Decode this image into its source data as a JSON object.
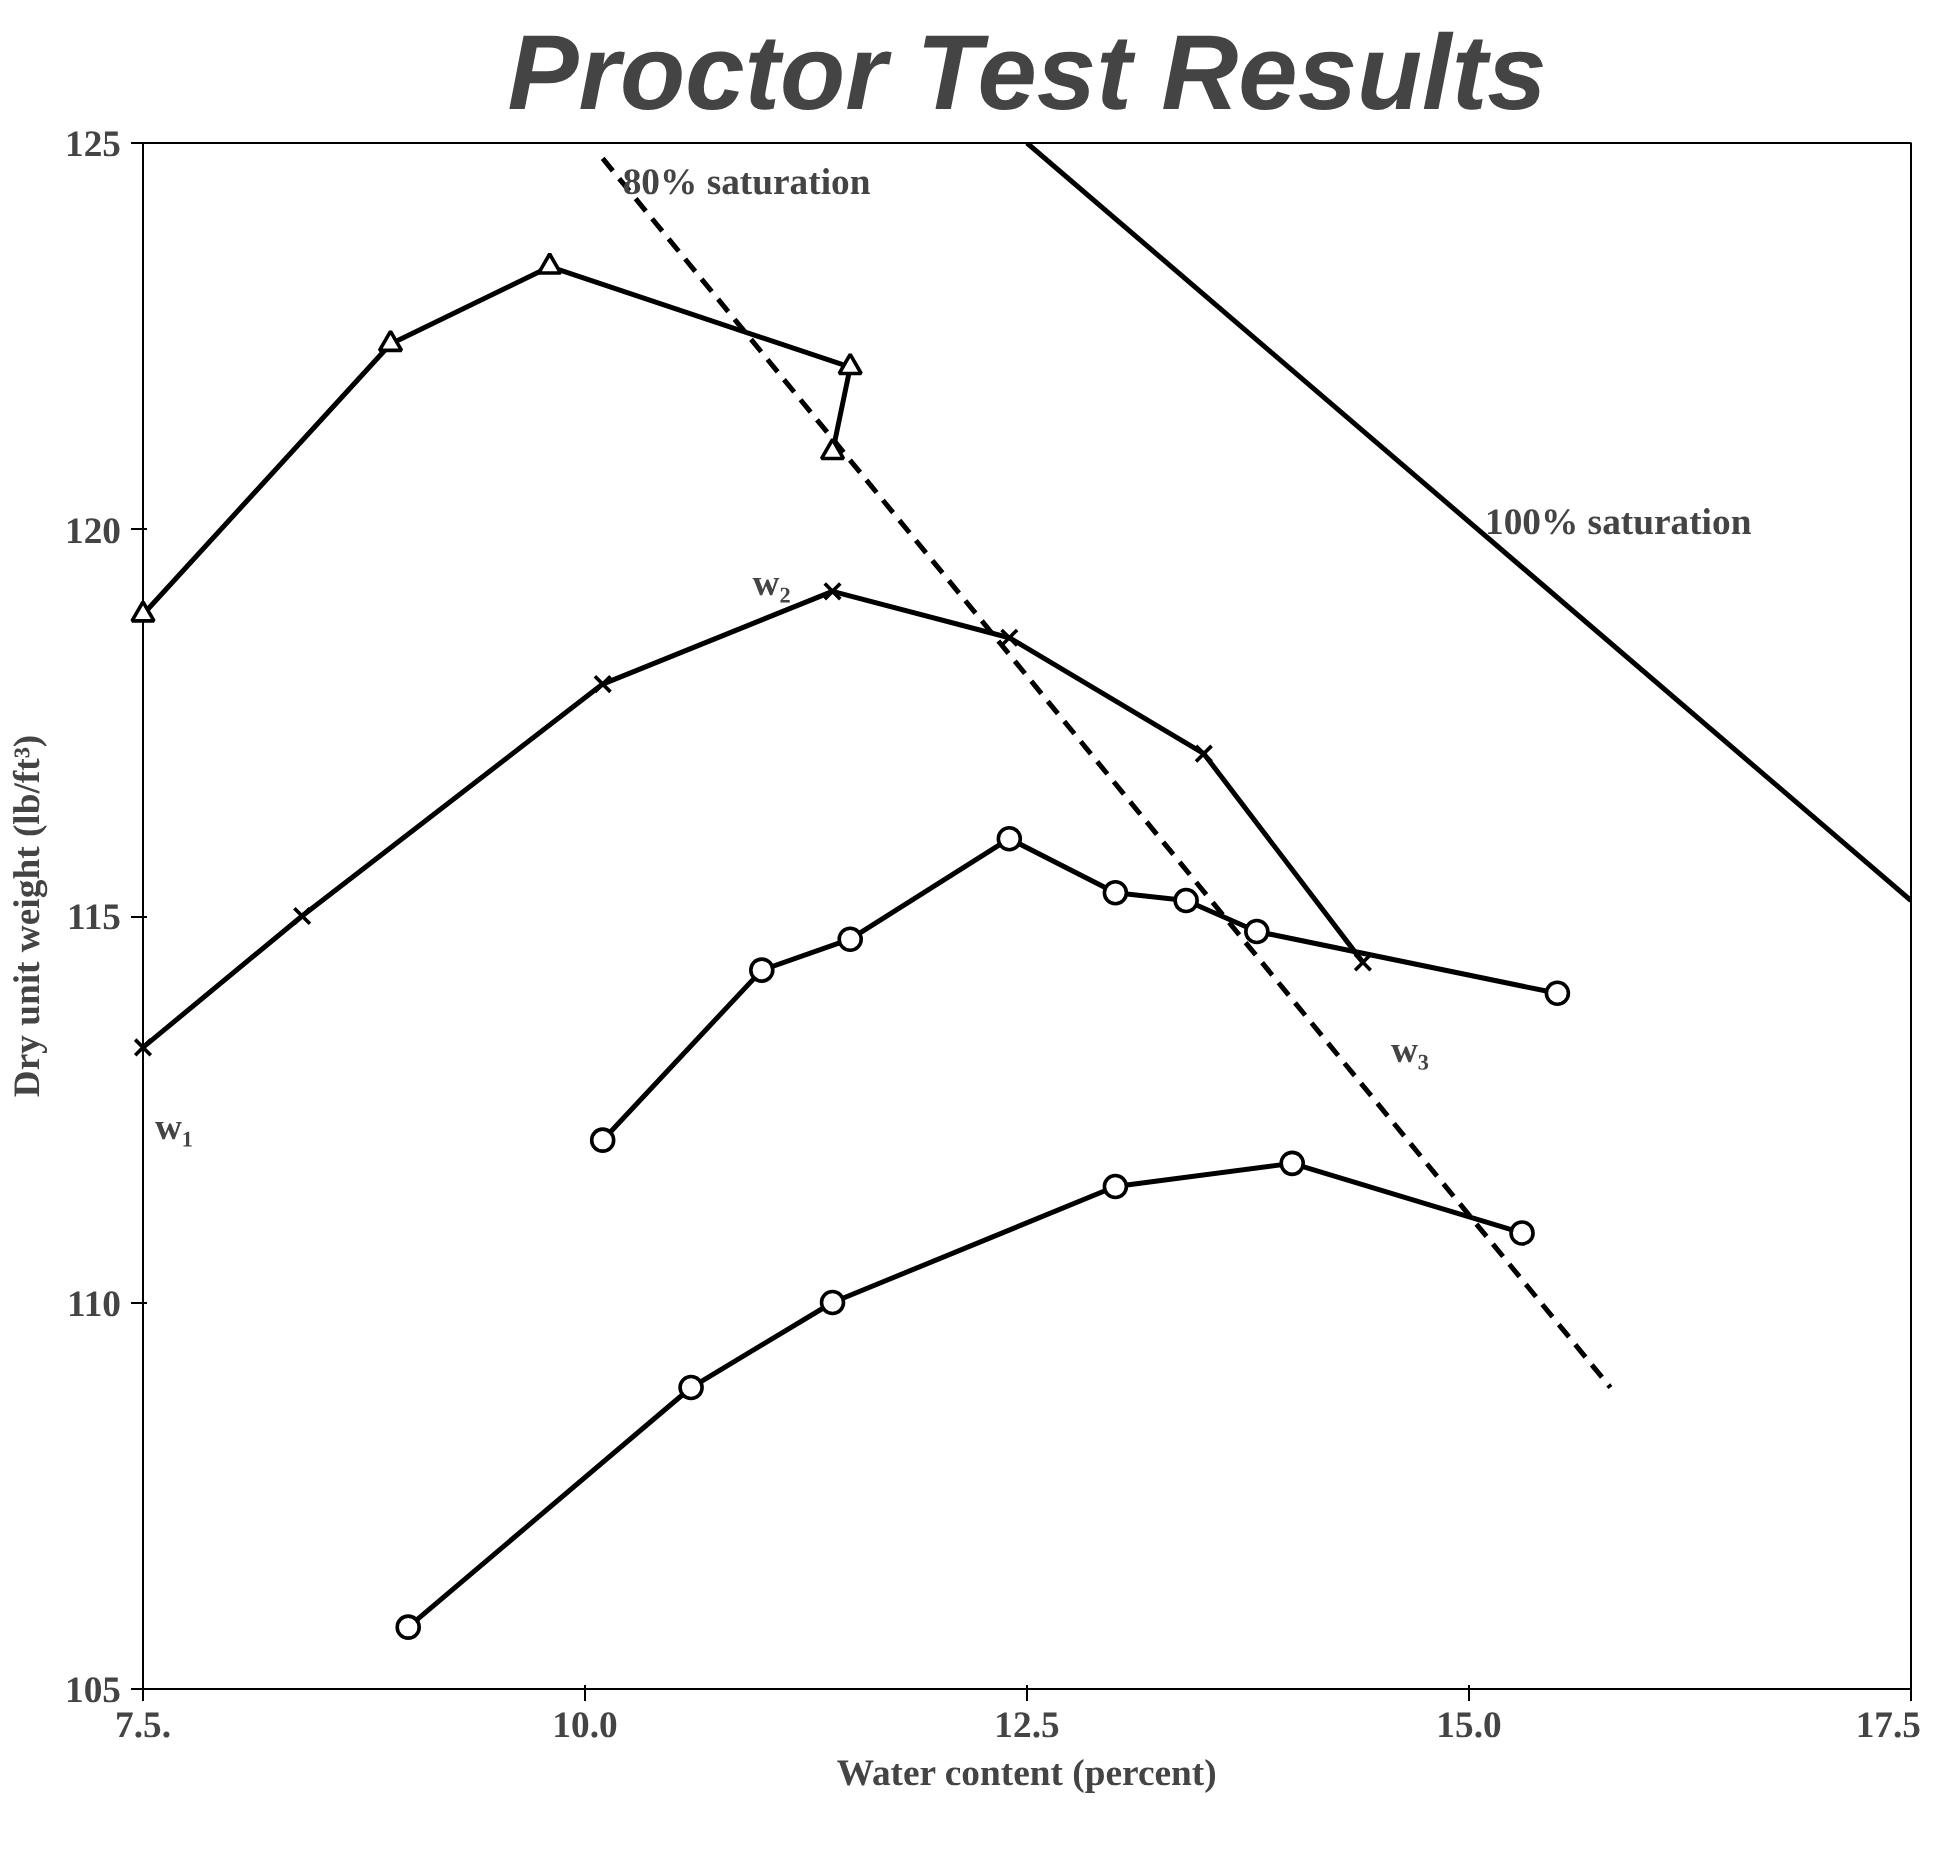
{
  "chart_data": {
    "type": "line",
    "title": "Proctor Test Results",
    "xlabel": "Water content (percent)",
    "ylabel": "Dry unit weight (lb/ft³)",
    "xlim": [
      7.5,
      17.5
    ],
    "ylim": [
      105,
      125
    ],
    "xticks": [
      {
        "value": 7.5,
        "label": "7.5."
      },
      {
        "value": 10,
        "label": "10.0"
      },
      {
        "value": 12.5,
        "label": "12.5"
      },
      {
        "value": 15,
        "label": "15.0"
      },
      {
        "value": 17.5,
        "label": "17.5"
      }
    ],
    "yticks": [
      105,
      110,
      115,
      120,
      125
    ],
    "grid": false,
    "series": [
      {
        "color": "#000000",
        "marker": "triangle",
        "line_style": "solid",
        "x": [
          7.5,
          8.9,
          9.8,
          11.5,
          11.4
        ],
        "values": [
          118.9,
          122.4,
          123.4,
          122.1,
          121.0
        ]
      },
      {
        "color": "#000000",
        "marker": "cross",
        "line_style": "solid",
        "x": [
          7.5,
          8.4,
          10.1,
          11.4,
          12.4,
          13.5,
          14.4
        ],
        "values": [
          113.3,
          115.0,
          118.0,
          119.2,
          118.6,
          117.1,
          114.4
        ]
      },
      {
        "color": "#000000",
        "marker": "circle",
        "line_style": "solid",
        "x": [
          10.1,
          11.0,
          11.5,
          12.4,
          13.0,
          13.4,
          13.8,
          15.5
        ],
        "values": [
          112.1,
          114.3,
          114.7,
          116.0,
          115.3,
          115.2,
          114.8,
          114.0
        ]
      },
      {
        "color": "#000000",
        "marker": "circle",
        "line_style": "solid",
        "x": [
          9.0,
          10.6,
          11.4,
          13.0,
          14.0,
          15.3
        ],
        "values": [
          105.8,
          108.9,
          110.0,
          111.5,
          111.8,
          110.9
        ]
      },
      {
        "color": "#000000",
        "marker": "none",
        "line_style": "dashed",
        "x": [
          10.1,
          15.8
        ],
        "values": [
          124.8,
          108.9
        ]
      },
      {
        "color": "#000000",
        "marker": "none",
        "line_style": "solid",
        "x": [
          12.5,
          17.5
        ],
        "values": [
          125.0,
          115.2
        ]
      }
    ],
    "annotations": [
      {
        "text": "80% saturation",
        "x": 10.1,
        "y": 124.8
      },
      {
        "text": "100% saturation",
        "x": 15.0,
        "y": 120.1
      },
      {
        "text": "w₁",
        "x": 7.5,
        "y": 113.3
      },
      {
        "text": "w₂",
        "x": 11.4,
        "y": 119.2
      },
      {
        "text": "w₃",
        "x": 14.4,
        "y": 114.4
      }
    ]
  }
}
